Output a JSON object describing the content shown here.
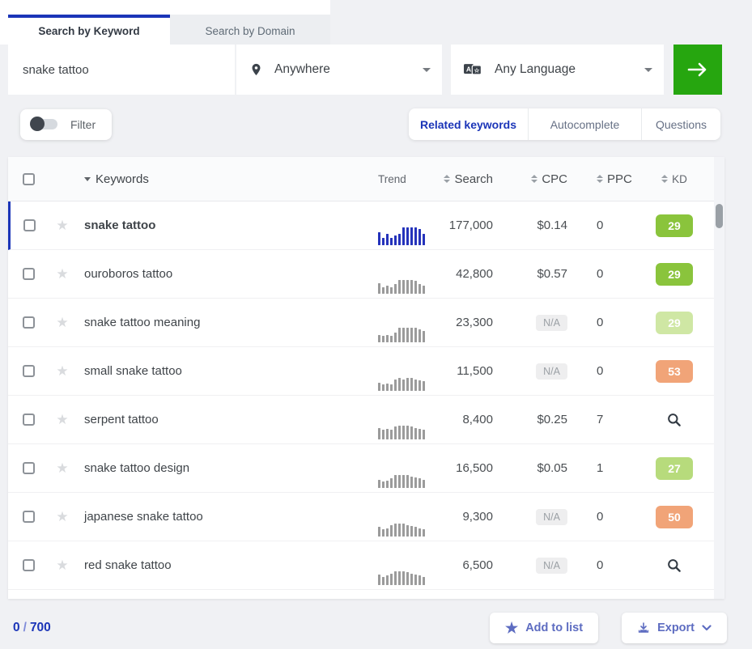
{
  "search_panel": {
    "tabs": [
      {
        "label": "Search by Keyword",
        "active": true
      },
      {
        "label": "Search by Domain",
        "active": false
      }
    ],
    "keyword_input_value": "snake tattoo",
    "location_value": "Anywhere",
    "language_value": "Any Language",
    "submit_icon": "arrow-right-icon"
  },
  "filter": {
    "label": "Filter",
    "enabled": false
  },
  "result_tabs": [
    {
      "label": "Related keywords",
      "active": true
    },
    {
      "label": "Autocomplete",
      "active": false
    },
    {
      "label": "Questions",
      "active": false
    }
  ],
  "table": {
    "columns": {
      "keywords": "Keywords",
      "trend": "Trend",
      "search": "Search",
      "cpc": "CPC",
      "ppc": "PPC",
      "kd": "KD"
    },
    "na_label": "N/A",
    "rows": [
      {
        "keyword": "snake tattoo",
        "search": "177,000",
        "cpc": "$0.14",
        "cpc_na": false,
        "ppc": "0",
        "kd": "29",
        "kd_style": "green",
        "selected": true,
        "bold": true,
        "trend_color": "blue",
        "trend": [
          60,
          35,
          55,
          35,
          45,
          55,
          85,
          85,
          85,
          85,
          75,
          55
        ]
      },
      {
        "keyword": "ouroboros tattoo",
        "search": "42,800",
        "cpc": "$0.57",
        "cpc_na": false,
        "ppc": "0",
        "kd": "29",
        "kd_style": "green",
        "selected": false,
        "bold": false,
        "trend_color": "gray",
        "trend": [
          50,
          30,
          40,
          30,
          45,
          65,
          65,
          65,
          65,
          60,
          45,
          40
        ]
      },
      {
        "keyword": "snake tattoo meaning",
        "search": "23,300",
        "cpc": "N/A",
        "cpc_na": true,
        "ppc": "0",
        "kd": "29",
        "kd_style": "pale-green",
        "selected": false,
        "bold": false,
        "trend_color": "gray",
        "trend": [
          35,
          30,
          35,
          30,
          45,
          70,
          70,
          70,
          70,
          70,
          60,
          55
        ]
      },
      {
        "keyword": "small snake tattoo",
        "search": "11,500",
        "cpc": "N/A",
        "cpc_na": true,
        "ppc": "0",
        "kd": "53",
        "kd_style": "orange",
        "selected": false,
        "bold": false,
        "trend_color": "gray",
        "trend": [
          40,
          30,
          35,
          30,
          55,
          60,
          55,
          62,
          62,
          55,
          50,
          45
        ]
      },
      {
        "keyword": "serpent tattoo",
        "search": "8,400",
        "cpc": "$0.25",
        "cpc_na": false,
        "ppc": "7",
        "kd": "",
        "kd_style": "search",
        "selected": false,
        "bold": false,
        "trend_color": "gray",
        "trend": [
          55,
          45,
          50,
          45,
          60,
          65,
          65,
          65,
          60,
          55,
          50,
          45
        ]
      },
      {
        "keyword": "snake tattoo design",
        "search": "16,500",
        "cpc": "$0.05",
        "cpc_na": false,
        "ppc": "1",
        "kd": "27",
        "kd_style": "light-green",
        "selected": false,
        "bold": false,
        "trend_color": "gray",
        "trend": [
          40,
          30,
          35,
          45,
          60,
          62,
          62,
          62,
          55,
          50,
          45,
          40
        ]
      },
      {
        "keyword": "japanese snake tattoo",
        "search": "9,300",
        "cpc": "N/A",
        "cpc_na": true,
        "ppc": "0",
        "kd": "50",
        "kd_style": "orange",
        "selected": false,
        "bold": false,
        "trend_color": "gray",
        "trend": [
          45,
          35,
          40,
          55,
          62,
          62,
          62,
          55,
          50,
          45,
          40,
          35
        ]
      },
      {
        "keyword": "red snake tattoo",
        "search": "6,500",
        "cpc": "N/A",
        "cpc_na": true,
        "ppc": "0",
        "kd": "",
        "kd_style": "search",
        "selected": false,
        "bold": false,
        "trend_color": "gray",
        "trend": [
          50,
          40,
          45,
          55,
          65,
          65,
          65,
          60,
          55,
          50,
          45,
          40
        ]
      }
    ]
  },
  "footer": {
    "selected_count": "0",
    "separator": "/",
    "total_count": "700",
    "add_to_list_label": "Add to list",
    "export_label": "Export"
  },
  "colors": {
    "accent_blue": "#1b35b8",
    "green_button": "#26a60f",
    "trend_blue": "#2533bb",
    "trend_gray": "#9b9b9b",
    "kd": {
      "green": "#8ac43c",
      "pale-green": "#cfe7a4",
      "light-green": "#b7db7c",
      "orange": "#f1a478"
    },
    "footer_button_text": "#5d6cc1"
  }
}
